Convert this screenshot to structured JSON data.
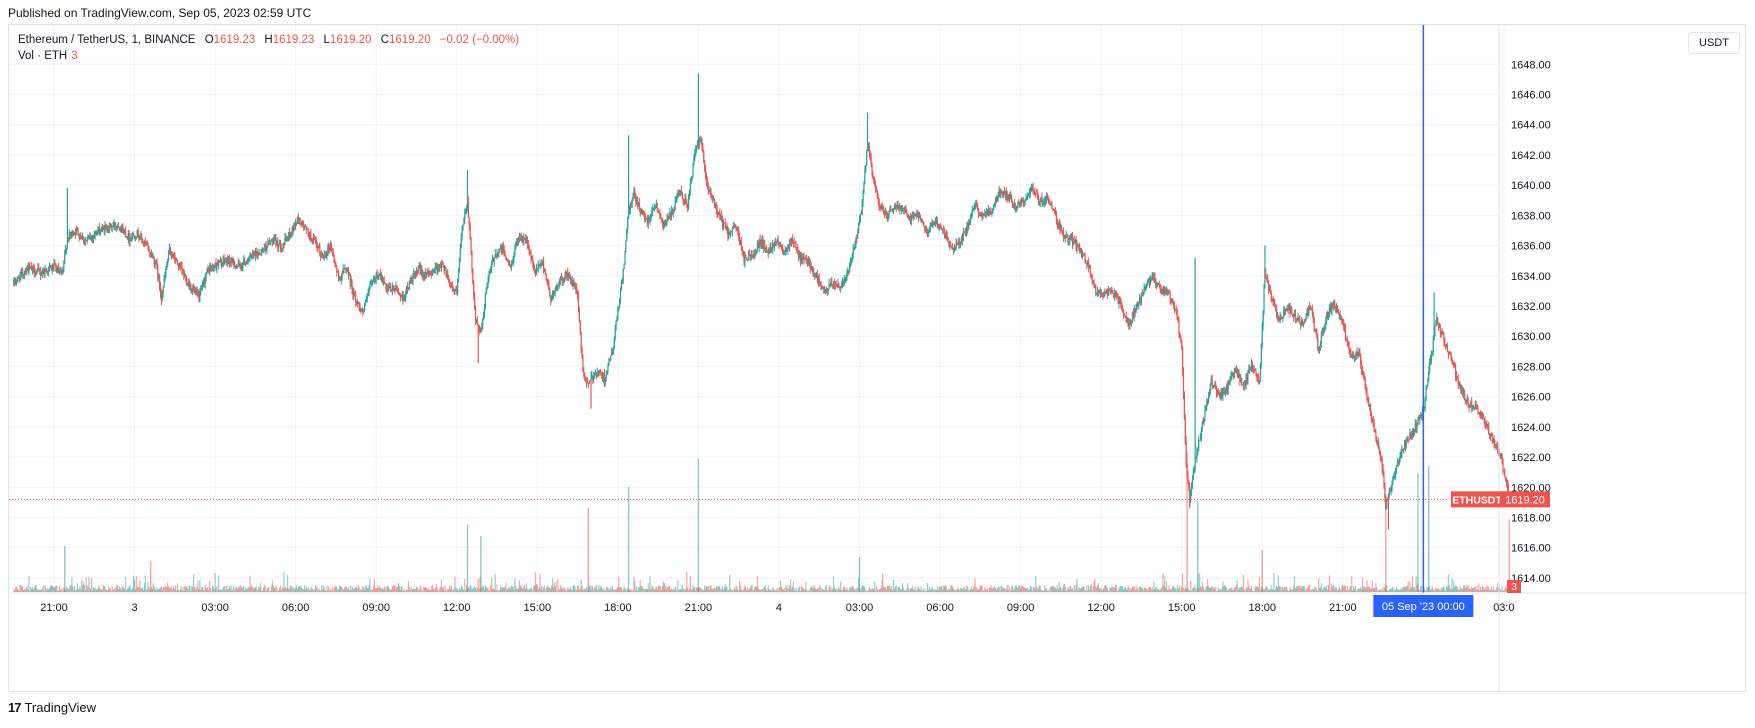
{
  "published": "Published on TradingView.com, Sep 05, 2023 02:59 UTC",
  "legend": {
    "symbol": "Ethereum / TetherUS, 1, BINANCE",
    "open_label": "O",
    "open": "1619.23",
    "high_label": "H",
    "high": "1619.23",
    "low_label": "L",
    "low": "1619.20",
    "close_label": "C",
    "close": "1619.20",
    "change": "−0.02 (−0.00%)",
    "vol_label": "Vol · ETH",
    "vol_value": "3"
  },
  "currency_button": "USDT",
  "footer": {
    "logo_mark": "17",
    "brand": "TradingView"
  },
  "colors": {
    "up": "#26a69a",
    "down": "#ef5350",
    "cursor": "#2962ff",
    "grid": "#f0f3fa",
    "price_line": "#ef5350"
  },
  "chart_data": {
    "type": "candlestick",
    "symbol": "ETHUSDT",
    "y_ticks": [
      "1648.00",
      "1646.00",
      "1644.00",
      "1642.00",
      "1640.00",
      "1638.00",
      "1636.00",
      "1634.00",
      "1632.00",
      "1630.00",
      "1628.00",
      "1626.00",
      "1624.00",
      "1622.00",
      "1620.00",
      "1618.00",
      "1616.00",
      "1614.00"
    ],
    "ylim": [
      1613.0,
      1650.6
    ],
    "x_ticks": [
      {
        "label": "21:00",
        "hour": 0
      },
      {
        "label": "3",
        "hour": 3
      },
      {
        "label": "03:00",
        "hour": 6
      },
      {
        "label": "06:00",
        "hour": 9
      },
      {
        "label": "09:00",
        "hour": 12
      },
      {
        "label": "12:00",
        "hour": 15
      },
      {
        "label": "15:00",
        "hour": 18
      },
      {
        "label": "18:00",
        "hour": 21
      },
      {
        "label": "21:00",
        "hour": 24
      },
      {
        "label": "4",
        "hour": 27
      },
      {
        "label": "03:00",
        "hour": 30
      },
      {
        "label": "06:00",
        "hour": 33
      },
      {
        "label": "09:00",
        "hour": 36
      },
      {
        "label": "12:00",
        "hour": 39
      },
      {
        "label": "15:00",
        "hour": 42
      },
      {
        "label": "18:00",
        "hour": 45
      },
      {
        "label": "21:00",
        "hour": 48
      },
      {
        "label": "03:0",
        "hour": 54
      }
    ],
    "cursor": {
      "label": "05 Sep '23   00:00",
      "hour": 51
    },
    "last_price": {
      "symbol": "ETHUSDT",
      "value": 1619.2
    },
    "last_volume": "3",
    "price_path": [
      [
        -1.5,
        1633.5
      ],
      [
        -1.0,
        1634.5
      ],
      [
        -0.5,
        1634.2
      ],
      [
        0,
        1634.6
      ],
      [
        0.3,
        1634.0
      ],
      [
        0.5,
        1636.5
      ],
      [
        0.8,
        1637.0
      ],
      [
        1.2,
        1636.3
      ],
      [
        1.6,
        1636.9
      ],
      [
        2.0,
        1637.2
      ],
      [
        2.4,
        1637.4
      ],
      [
        2.8,
        1636.5
      ],
      [
        3.1,
        1636.8
      ],
      [
        3.5,
        1635.8
      ],
      [
        3.8,
        1634.8
      ],
      [
        4.0,
        1632.6
      ],
      [
        4.3,
        1635.7
      ],
      [
        4.7,
        1634.5
      ],
      [
        5.0,
        1633.5
      ],
      [
        5.4,
        1632.5
      ],
      [
        5.7,
        1634.3
      ],
      [
        6.1,
        1634.8
      ],
      [
        6.5,
        1635.0
      ],
      [
        6.9,
        1634.6
      ],
      [
        7.3,
        1635.2
      ],
      [
        7.7,
        1635.6
      ],
      [
        8.1,
        1636.3
      ],
      [
        8.5,
        1636.0
      ],
      [
        8.8,
        1636.8
      ],
      [
        9.1,
        1637.8
      ],
      [
        9.4,
        1637.0
      ],
      [
        9.7,
        1636.2
      ],
      [
        10.0,
        1635.2
      ],
      [
        10.3,
        1636.0
      ],
      [
        10.6,
        1633.8
      ],
      [
        10.9,
        1634.6
      ],
      [
        11.2,
        1632.5
      ],
      [
        11.5,
        1631.6
      ],
      [
        11.8,
        1633.4
      ],
      [
        12.1,
        1634.2
      ],
      [
        12.4,
        1633.0
      ],
      [
        12.7,
        1633.2
      ],
      [
        13.0,
        1632.5
      ],
      [
        13.3,
        1633.7
      ],
      [
        13.6,
        1634.4
      ],
      [
        13.9,
        1634.0
      ],
      [
        14.2,
        1634.5
      ],
      [
        14.5,
        1634.7
      ],
      [
        14.8,
        1633.3
      ],
      [
        15.0,
        1632.8
      ],
      [
        15.2,
        1637.2
      ],
      [
        15.4,
        1639.0
      ],
      [
        15.7,
        1631.0
      ],
      [
        15.9,
        1630.2
      ],
      [
        16.1,
        1633.2
      ],
      [
        16.4,
        1635.4
      ],
      [
        16.7,
        1635.8
      ],
      [
        17.0,
        1634.5
      ],
      [
        17.3,
        1636.7
      ],
      [
        17.6,
        1636.3
      ],
      [
        17.9,
        1634.2
      ],
      [
        18.2,
        1634.9
      ],
      [
        18.5,
        1632.5
      ],
      [
        18.8,
        1633.5
      ],
      [
        19.1,
        1634.1
      ],
      [
        19.3,
        1633.6
      ],
      [
        19.5,
        1632.8
      ],
      [
        19.7,
        1627.5
      ],
      [
        19.9,
        1626.8
      ],
      [
        20.2,
        1627.7
      ],
      [
        20.5,
        1627.2
      ],
      [
        20.8,
        1629.0
      ],
      [
        21.0,
        1631.6
      ],
      [
        21.2,
        1634.3
      ],
      [
        21.4,
        1638.2
      ],
      [
        21.6,
        1639.4
      ],
      [
        21.8,
        1638.5
      ],
      [
        22.1,
        1637.6
      ],
      [
        22.4,
        1638.8
      ],
      [
        22.7,
        1637.4
      ],
      [
        23.0,
        1638.1
      ],
      [
        23.3,
        1639.5
      ],
      [
        23.6,
        1638.7
      ],
      [
        23.9,
        1642.5
      ],
      [
        24.1,
        1643.0
      ],
      [
        24.3,
        1640.0
      ],
      [
        24.5,
        1639.2
      ],
      [
        24.8,
        1637.9
      ],
      [
        25.1,
        1636.8
      ],
      [
        25.4,
        1637.3
      ],
      [
        25.7,
        1635.1
      ],
      [
        26.0,
        1635.3
      ],
      [
        26.3,
        1636.3
      ],
      [
        26.6,
        1635.6
      ],
      [
        26.9,
        1636.4
      ],
      [
        27.2,
        1635.7
      ],
      [
        27.5,
        1636.4
      ],
      [
        27.8,
        1635.1
      ],
      [
        28.1,
        1634.9
      ],
      [
        28.4,
        1633.9
      ],
      [
        28.7,
        1632.9
      ],
      [
        29.0,
        1633.5
      ],
      [
        29.3,
        1633.3
      ],
      [
        29.6,
        1634.5
      ],
      [
        29.9,
        1636.5
      ],
      [
        30.1,
        1638.7
      ],
      [
        30.3,
        1642.8
      ],
      [
        30.5,
        1640.5
      ],
      [
        30.7,
        1638.9
      ],
      [
        31.0,
        1637.9
      ],
      [
        31.3,
        1638.5
      ],
      [
        31.6,
        1638.6
      ],
      [
        31.9,
        1637.8
      ],
      [
        32.2,
        1638.2
      ],
      [
        32.5,
        1636.9
      ],
      [
        32.8,
        1637.6
      ],
      [
        33.1,
        1637.1
      ],
      [
        33.4,
        1635.8
      ],
      [
        33.7,
        1636.1
      ],
      [
        34.0,
        1637.1
      ],
      [
        34.3,
        1638.6
      ],
      [
        34.6,
        1638.0
      ],
      [
        34.9,
        1638.3
      ],
      [
        35.2,
        1639.5
      ],
      [
        35.5,
        1639.4
      ],
      [
        35.8,
        1638.6
      ],
      [
        36.1,
        1638.9
      ],
      [
        36.4,
        1639.8
      ],
      [
        36.7,
        1638.9
      ],
      [
        37.0,
        1639.2
      ],
      [
        37.3,
        1637.9
      ],
      [
        37.6,
        1636.6
      ],
      [
        37.9,
        1636.4
      ],
      [
        38.2,
        1635.7
      ],
      [
        38.5,
        1634.7
      ],
      [
        38.8,
        1633.0
      ],
      [
        39.1,
        1632.8
      ],
      [
        39.4,
        1633.0
      ],
      [
        39.7,
        1632.2
      ],
      [
        40.0,
        1630.7
      ],
      [
        40.3,
        1631.8
      ],
      [
        40.6,
        1633.0
      ],
      [
        40.9,
        1634.0
      ],
      [
        41.2,
        1633.0
      ],
      [
        41.5,
        1632.9
      ],
      [
        41.8,
        1631.5
      ],
      [
        42.0,
        1629.2
      ],
      [
        42.15,
        1622.0
      ],
      [
        42.3,
        1619.2
      ],
      [
        42.5,
        1621.7
      ],
      [
        42.8,
        1624.4
      ],
      [
        43.1,
        1627.0
      ],
      [
        43.4,
        1626.0
      ],
      [
        43.7,
        1626.6
      ],
      [
        44.0,
        1627.8
      ],
      [
        44.3,
        1626.7
      ],
      [
        44.6,
        1628.1
      ],
      [
        44.9,
        1627.0
      ],
      [
        45.1,
        1634.2
      ],
      [
        45.3,
        1632.7
      ],
      [
        45.6,
        1631.1
      ],
      [
        45.9,
        1631.8
      ],
      [
        46.2,
        1631.4
      ],
      [
        46.5,
        1630.9
      ],
      [
        46.8,
        1632.0
      ],
      [
        47.1,
        1629.0
      ],
      [
        47.4,
        1631.5
      ],
      [
        47.7,
        1632.2
      ],
      [
        48.0,
        1630.9
      ],
      [
        48.3,
        1628.5
      ],
      [
        48.6,
        1628.9
      ],
      [
        48.9,
        1626.0
      ],
      [
        49.2,
        1623.5
      ],
      [
        49.45,
        1621.8
      ],
      [
        49.6,
        1618.7
      ],
      [
        49.8,
        1620.1
      ],
      [
        50.1,
        1621.9
      ],
      [
        50.4,
        1623.1
      ],
      [
        50.7,
        1624.0
      ],
      [
        51.0,
        1625.0
      ],
      [
        51.3,
        1628.8
      ],
      [
        51.5,
        1631.2
      ],
      [
        51.8,
        1629.6
      ],
      [
        52.1,
        1628.2
      ],
      [
        52.4,
        1626.4
      ],
      [
        52.7,
        1625.5
      ],
      [
        53.0,
        1625.2
      ],
      [
        53.3,
        1624.3
      ],
      [
        53.6,
        1623.1
      ],
      [
        53.9,
        1622.0
      ],
      [
        54.1,
        1620.1
      ],
      [
        54.25,
        1619.2
      ]
    ],
    "spikes": [
      {
        "hour": 0.5,
        "high": 1639.8
      },
      {
        "hour": 15.4,
        "high": 1641.0
      },
      {
        "hour": 15.8,
        "low": 1628.2
      },
      {
        "hour": 20.0,
        "low": 1625.2
      },
      {
        "hour": 21.4,
        "high": 1643.3
      },
      {
        "hour": 24.0,
        "high": 1647.4
      },
      {
        "hour": 30.3,
        "high": 1644.8
      },
      {
        "hour": 42.3,
        "low": 1618.6
      },
      {
        "hour": 42.5,
        "high": 1635.2
      },
      {
        "hour": 45.1,
        "high": 1636.0
      },
      {
        "hour": 49.7,
        "low": 1617.2
      },
      {
        "hour": 51.4,
        "high": 1632.9
      }
    ],
    "volume_spikes": [
      {
        "hour": 0.4,
        "v": 33,
        "up": true
      },
      {
        "hour": 3.6,
        "v": 22,
        "up": false
      },
      {
        "hour": 15.4,
        "v": 48,
        "up": true
      },
      {
        "hour": 15.9,
        "v": 40,
        "up": true
      },
      {
        "hour": 19.9,
        "v": 60,
        "up": false
      },
      {
        "hour": 21.4,
        "v": 75,
        "up": true
      },
      {
        "hour": 24.0,
        "v": 95,
        "up": true
      },
      {
        "hour": 30.0,
        "v": 25,
        "up": true
      },
      {
        "hour": 42.2,
        "v": 100,
        "up": false
      },
      {
        "hour": 42.6,
        "v": 65,
        "up": true
      },
      {
        "hour": 45.0,
        "v": 30,
        "up": false
      },
      {
        "hour": 49.6,
        "v": 70,
        "up": false
      },
      {
        "hour": 50.8,
        "v": 85,
        "up": true
      },
      {
        "hour": 51.2,
        "v": 90,
        "up": true
      },
      {
        "hour": 54.2,
        "v": 52,
        "up": false
      }
    ]
  }
}
